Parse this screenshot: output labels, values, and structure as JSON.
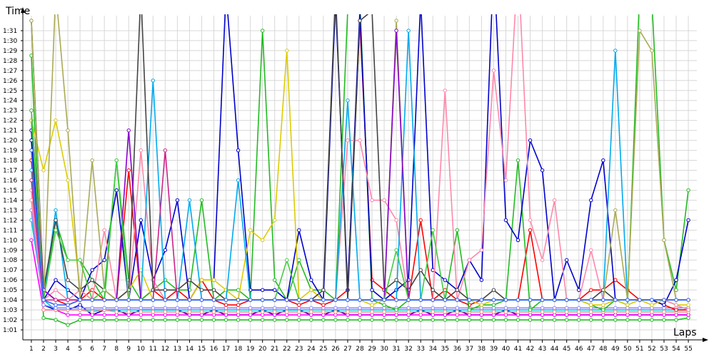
{
  "chart_data": {
    "type": "line",
    "title": "",
    "ylabel": "Time",
    "xlabel": "Laps",
    "x": [
      1,
      2,
      3,
      4,
      5,
      6,
      7,
      8,
      9,
      10,
      11,
      12,
      13,
      14,
      15,
      16,
      17,
      18,
      19,
      20,
      21,
      22,
      23,
      24,
      25,
      26,
      27,
      28,
      29,
      30,
      31,
      32,
      33,
      34,
      35,
      36,
      37,
      38,
      39,
      40,
      41,
      42,
      43,
      44,
      45,
      46,
      47,
      48,
      49,
      50,
      51,
      52,
      53,
      54,
      55
    ],
    "x_ticks": [
      "1",
      "2",
      "3",
      "4",
      "5",
      "6",
      "7",
      "8",
      "9",
      "10",
      "11",
      "12",
      "13",
      "14",
      "15",
      "16",
      "17",
      "18",
      "19",
      "20",
      "21",
      "22",
      "23",
      "24",
      "25",
      "26",
      "27",
      "28",
      "29",
      "30",
      "31",
      "32",
      "33",
      "34",
      "35",
      "36",
      "37",
      "38",
      "39",
      "40",
      "41",
      "42",
      "43",
      "44",
      "45",
      "46",
      "47",
      "48",
      "49",
      "50",
      "51",
      "52",
      "53",
      "54",
      "55"
    ],
    "y_ticks": [
      "1:01",
      "1:02",
      "1:03",
      "1:04",
      "1:05",
      "1:06",
      "1:07",
      "1:08",
      "1:09",
      "1:10",
      "1:11",
      "1:12",
      "1:13",
      "1:14",
      "1:15",
      "1:16",
      "1:17",
      "1:18",
      "1:19",
      "1:20",
      "1:21",
      "1:22",
      "1:23",
      "1:24",
      "1:25",
      "1:26",
      "1:27",
      "1:28",
      "1:29",
      "1:30",
      "1:31"
    ],
    "y_unit": "seconds",
    "ylim": [
      60,
      92.5
    ],
    "xlim": [
      0.3,
      55.7
    ],
    "grid": true,
    "legend": "none",
    "series": [
      {
        "color": "#0000cc",
        "values": [
          81,
          63.5,
          63,
          63,
          63.5,
          62.5,
          63,
          63,
          62.5,
          63,
          63,
          63,
          63,
          62.5,
          62.5,
          63,
          62.5,
          62.5,
          62.5,
          63,
          62.5,
          63,
          63,
          62.5,
          62.5,
          63,
          62.5,
          62.5,
          62.5,
          62.5,
          62.5,
          62.5,
          63,
          62.5,
          62.5,
          63,
          62.5,
          62.5,
          62.5,
          63,
          62.5,
          62.5,
          62.5,
          62.5,
          62.5,
          62.5,
          62.5,
          62.5,
          62.5,
          62.5,
          62.5,
          62.5,
          62.5,
          62.5,
          62.5
        ]
      },
      {
        "color": "#22bb22",
        "values": [
          88.5,
          62.2,
          62,
          61.5,
          62,
          62,
          62,
          62,
          62,
          62,
          62,
          62,
          62,
          62,
          62,
          62,
          62,
          62,
          62,
          62,
          62,
          62,
          62,
          62,
          62,
          62,
          62,
          62,
          62,
          62,
          62,
          62,
          62,
          62,
          62,
          62,
          62,
          62,
          62,
          62,
          62,
          62,
          62,
          62,
          62,
          62,
          62,
          62,
          62,
          62,
          62,
          62,
          62,
          62,
          62.2
        ]
      },
      {
        "color": "#ff00ff",
        "values": [
          70,
          63,
          63,
          62.5,
          62.5,
          62.5,
          62.5,
          62.5,
          62.5,
          62.5,
          62.5,
          62.5,
          62.5,
          62.5,
          62.5,
          62.5,
          62.5,
          62.5,
          62.5,
          62.5,
          62.5,
          62.5,
          62.5,
          62.5,
          62.5,
          62.5,
          62.5,
          62.5,
          62.5,
          62.5,
          62.5,
          62.5,
          62.5,
          62.5,
          62.5,
          62.5,
          62.5,
          62.5,
          62.5,
          62.5,
          62.5,
          62.5,
          62.5,
          62.5,
          62.5,
          62.5,
          62.5,
          62.5,
          62.5,
          62.5,
          62.5,
          62.5,
          62.5,
          62.5,
          62.5
        ]
      },
      {
        "color": "#00cccc",
        "values": [
          72,
          64,
          63,
          63,
          63,
          63,
          63,
          63,
          63,
          63,
          63,
          63,
          63,
          63,
          63,
          63,
          63,
          63,
          63,
          63,
          63,
          63,
          63,
          63,
          63,
          63,
          63,
          63,
          63,
          63,
          63,
          63,
          63,
          63,
          63,
          63,
          63,
          63,
          63,
          63,
          63,
          63,
          63,
          63,
          63,
          63,
          63,
          63,
          63,
          63,
          63,
          63,
          63,
          63,
          63
        ]
      },
      {
        "color": "#ff8888",
        "values": [
          75,
          63,
          63,
          63,
          63,
          62.8,
          63,
          62.8,
          62.8,
          62.8,
          62.8,
          62.8,
          62.8,
          62.8,
          62.8,
          62.8,
          62.8,
          62.8,
          62.8,
          62.8,
          62.8,
          62.8,
          62.8,
          62.8,
          62.8,
          62.8,
          62.8,
          62.8,
          62.8,
          62.8,
          62.8,
          62.8,
          62.8,
          62.8,
          62.8,
          62.8,
          62.8,
          62.8,
          62.8,
          62.8,
          62.8,
          62.8,
          62.8,
          62.8,
          62.8,
          62.8,
          62.8,
          62.8,
          62.8,
          62.8,
          62.8,
          62.8,
          62.8,
          62.8,
          62.8
        ]
      },
      {
        "color": "#8888ff",
        "values": [
          73,
          63.5,
          63.2,
          63.2,
          63.2,
          63.2,
          63.2,
          63.2,
          63.2,
          63.2,
          63.2,
          63.2,
          63.2,
          63.2,
          63.2,
          63.2,
          63.2,
          63.2,
          63.2,
          63.2,
          63.2,
          63.2,
          63.2,
          63.2,
          63.2,
          63.2,
          63.2,
          63.2,
          63.2,
          63.2,
          63.2,
          63.2,
          63.2,
          63.2,
          63.2,
          63.2,
          63.2,
          63.2,
          63.2,
          63.2,
          63.2,
          63.2,
          63.2,
          63.2,
          63.2,
          63.2,
          63.2,
          63.2,
          63.2,
          63.2,
          63.2,
          63.2,
          63.2,
          63.2,
          63.2
        ]
      },
      {
        "color": "#ff0000",
        "values": [
          78,
          65,
          64,
          63.5,
          64,
          65,
          64,
          64,
          77,
          64,
          65,
          64,
          65,
          64,
          66,
          64,
          63.5,
          63.5,
          64,
          64,
          64,
          64,
          63.5,
          64,
          63.5,
          64,
          65,
          92,
          66,
          65,
          64,
          64,
          72,
          64,
          65,
          64,
          63.5,
          64,
          64,
          64,
          64,
          71,
          64,
          64,
          64,
          64,
          65,
          65,
          66,
          65,
          64,
          64,
          63.5,
          63,
          63
        ]
      },
      {
        "color": "#22bb22",
        "values": [
          82,
          64,
          72,
          68,
          68,
          66,
          64,
          78,
          66,
          64,
          65,
          66,
          65,
          65,
          74,
          64,
          65,
          65,
          64,
          91,
          66,
          64,
          68,
          65,
          65,
          64,
          93,
          94,
          64,
          63.5,
          63,
          64,
          64,
          64,
          64,
          71,
          63,
          63.5,
          63.5,
          64,
          78,
          63,
          64,
          64,
          64,
          64,
          63.5,
          63,
          64,
          63.5,
          95,
          94,
          70,
          65,
          75
        ]
      },
      {
        "color": "#0000cc",
        "values": [
          80,
          64,
          66,
          65,
          64,
          67,
          68,
          75,
          64,
          72,
          66,
          69,
          74,
          64,
          66,
          66,
          95,
          79,
          65,
          65,
          65,
          64,
          71,
          66,
          64,
          94,
          65,
          93,
          65,
          64,
          65,
          66,
          94,
          67,
          66,
          65,
          68,
          66,
          98,
          72,
          70,
          80,
          77,
          64,
          68,
          65,
          74,
          78,
          64,
          64,
          64,
          64,
          63.5,
          66,
          72
        ]
      },
      {
        "color": "#ddcc00",
        "values": [
          82,
          77,
          82,
          76,
          65,
          64,
          65,
          64,
          65,
          67,
          64,
          64,
          64,
          64,
          66,
          66,
          65,
          64,
          71,
          70,
          72,
          89,
          64,
          65,
          64,
          64,
          64,
          64,
          63.5,
          64,
          64,
          64,
          64,
          64,
          64,
          64,
          64,
          63.5,
          64,
          64,
          64,
          64,
          64,
          64,
          64,
          64,
          63.5,
          63.5,
          64,
          63.5,
          64,
          63.5,
          64,
          63.5,
          63.5
        ]
      },
      {
        "color": "#ff88aa",
        "values": [
          74,
          64,
          65,
          64,
          65,
          64,
          71,
          64,
          64,
          79,
          66,
          64,
          64,
          64,
          64,
          64,
          64,
          64,
          64,
          64,
          64,
          64,
          64,
          64,
          64,
          64,
          80,
          80,
          74,
          74,
          72,
          64,
          64,
          64,
          85,
          64,
          68,
          69,
          87,
          76,
          98,
          72,
          68,
          74,
          64,
          64,
          69,
          64,
          64,
          64,
          64,
          64,
          64,
          63.5,
          63
        ]
      },
      {
        "color": "#00aaee",
        "values": [
          77,
          64,
          73,
          64,
          64,
          64,
          64,
          64,
          64,
          64,
          86,
          64,
          64,
          74,
          64,
          64,
          64,
          76,
          64,
          64,
          64,
          64,
          64,
          64,
          64,
          64,
          84,
          64,
          64,
          64,
          64,
          91,
          64,
          64,
          64,
          64,
          64,
          64,
          64,
          64,
          64,
          64,
          64,
          64,
          64,
          64,
          64,
          64,
          89,
          64,
          64,
          64,
          64,
          64,
          64
        ]
      },
      {
        "color": "#444444",
        "values": [
          92,
          65,
          72,
          66,
          65,
          66,
          65,
          64,
          65,
          95,
          65,
          65,
          65,
          66,
          65,
          65,
          64,
          64,
          64,
          64,
          64,
          64,
          64,
          64,
          65,
          95,
          64,
          92,
          93,
          65,
          66,
          65,
          67,
          65,
          64,
          65,
          64,
          64,
          65,
          64,
          64,
          64,
          64,
          64,
          64,
          64,
          64,
          65,
          64,
          64,
          64,
          64,
          64,
          64,
          64
        ]
      },
      {
        "color": "#aaaa55",
        "values": [
          92,
          64,
          95,
          81,
          64,
          78,
          65,
          64,
          64,
          64,
          64,
          64,
          64,
          64,
          64,
          64,
          64,
          64,
          64,
          64,
          64,
          64,
          64,
          64,
          64,
          64,
          64,
          64,
          64,
          64,
          92,
          64,
          64,
          64,
          64,
          64,
          64,
          64,
          64,
          64,
          64,
          64,
          64,
          64,
          64,
          64,
          64,
          64,
          73,
          64,
          91,
          89,
          70,
          64,
          64
        ]
      },
      {
        "color": "#8800cc",
        "values": [
          83,
          65,
          64,
          64,
          64,
          64,
          64,
          64,
          81,
          64,
          64,
          64,
          64,
          64,
          64,
          64,
          64,
          64,
          64,
          64,
          64,
          64,
          64,
          64,
          64,
          64,
          64,
          64,
          64,
          64,
          91,
          64,
          64,
          64,
          64,
          64,
          64,
          64,
          64,
          64,
          64,
          64,
          64,
          64,
          64,
          64,
          64,
          64,
          64,
          64,
          64,
          64,
          64,
          64,
          64
        ]
      },
      {
        "color": "#cc2288",
        "values": [
          76,
          64,
          64,
          64,
          64,
          64,
          64,
          64,
          64,
          64,
          64,
          79,
          64,
          64,
          64,
          64,
          64,
          64,
          64,
          64,
          64,
          64,
          64,
          64,
          64,
          64,
          64,
          64,
          64,
          64,
          64,
          64,
          64,
          64,
          64,
          64,
          64,
          64,
          64,
          64,
          64,
          64,
          64,
          64,
          64,
          64,
          64,
          64,
          64,
          64,
          64,
          64,
          64,
          64,
          64
        ]
      },
      {
        "color": "#44cc44",
        "values": [
          83,
          64,
          71,
          68,
          68,
          64,
          65,
          78,
          64,
          64,
          64,
          64,
          64,
          64,
          64,
          64,
          64,
          64,
          64,
          64,
          64,
          68,
          64,
          64,
          64,
          64,
          64,
          64,
          64,
          64,
          69,
          64,
          64,
          71,
          64,
          64,
          64,
          64,
          64,
          64,
          64,
          64,
          64,
          64,
          64,
          64,
          64,
          64,
          64,
          64,
          64,
          64,
          64,
          64,
          64
        ]
      },
      {
        "color": "#3366ff",
        "values": [
          79,
          64,
          63.5,
          63.5,
          64,
          64,
          64,
          64,
          64,
          64,
          64,
          64,
          64,
          64,
          64,
          64,
          64,
          64,
          64,
          64,
          64,
          64,
          64,
          64,
          64,
          64,
          64,
          64,
          64,
          64,
          64,
          64,
          64,
          64,
          64,
          64,
          64,
          64,
          64,
          64,
          64,
          64,
          64,
          64,
          64,
          64,
          64,
          64,
          64,
          64,
          64,
          64,
          64,
          64,
          64
        ]
      }
    ]
  }
}
